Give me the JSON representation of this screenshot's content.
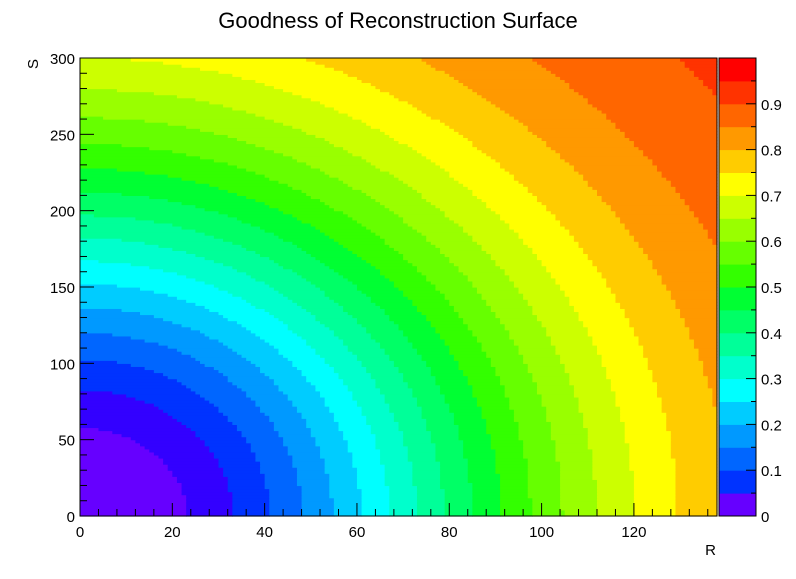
{
  "chart_data": {
    "type": "heatmap",
    "title": "Goodness of Reconstruction Surface",
    "xlabel": "R",
    "ylabel": "S",
    "xlim": [
      0,
      138
    ],
    "ylim": [
      0,
      300
    ],
    "x_ticks": [
      0,
      20,
      40,
      60,
      80,
      100,
      120
    ],
    "y_ticks": [
      0,
      50,
      100,
      150,
      200,
      250,
      300
    ],
    "z_range": [
      0,
      1
    ],
    "z_ticks": [
      0,
      0.1,
      0.2,
      0.3,
      0.4,
      0.5,
      0.6,
      0.7,
      0.8,
      0.9
    ],
    "z_levels": 20,
    "surface": "z = 1 - exp(-((R/102)^2 + (S/255)^2))",
    "palette": [
      "#6600ff",
      "#3300ff",
      "#0033ff",
      "#0066ff",
      "#0099ff",
      "#00ccff",
      "#00ffff",
      "#00ffcc",
      "#00ff99",
      "#00ff66",
      "#00ff33",
      "#33ff00",
      "#66ff00",
      "#99ff00",
      "#ccff00",
      "#ffff00",
      "#ffcc00",
      "#ff9900",
      "#ff6600",
      "#ff3300",
      "#ff0000"
    ],
    "grid": false,
    "colorbar": "right"
  }
}
